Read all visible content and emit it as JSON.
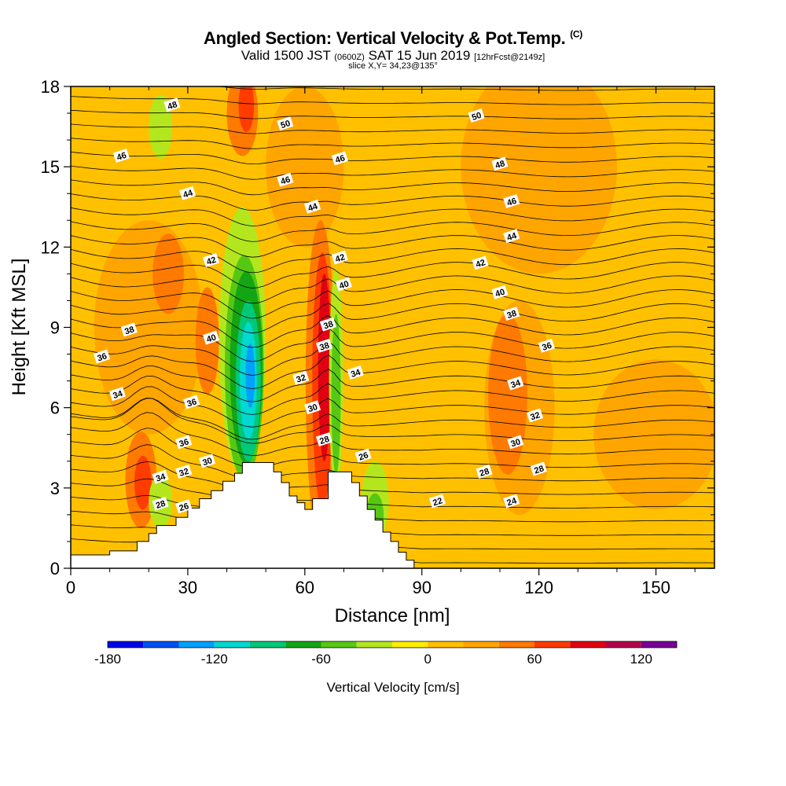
{
  "header": {
    "title": "Angled Section: Vertical Velocity & Pot.Temp.",
    "title_mark": "(C)",
    "valid_prefix": "Valid 1500 JST",
    "valid_utc": "(0600Z)",
    "valid_date": "SAT 15 Jun 2019",
    "forecast": "[12hrFcst@2149z]",
    "slice": "slice X,Y= 34,23@135°"
  },
  "chart_data": {
    "type": "heatmap",
    "title": "Angled Section: Vertical Velocity & Pot.Temp.",
    "xlabel": "Distance [nm]",
    "ylabel": "Height [Kft MSL]",
    "xlim": [
      0,
      165
    ],
    "ylim": [
      0,
      18
    ],
    "x_ticks": [
      "0",
      "30",
      "60",
      "90",
      "120",
      "150"
    ],
    "y_ticks": [
      "0",
      "3",
      "6",
      "9",
      "12",
      "15",
      "18"
    ],
    "colorbar": {
      "label": "Vertical Velocity [cm/s]",
      "tick_labels": [
        "-180",
        "-120",
        "-60",
        "0",
        "60",
        "120"
      ],
      "levels": [
        -180,
        -160,
        -140,
        -120,
        -100,
        -80,
        -60,
        -40,
        -20,
        0,
        20,
        40,
        60,
        80,
        100,
        120,
        140
      ],
      "colors": [
        "#0000e6",
        "#0050f0",
        "#00a0ff",
        "#00d8d0",
        "#00c878",
        "#14a514",
        "#56c814",
        "#b4e61e",
        "#ffee00",
        "#ffc000",
        "#ffa500",
        "#ff7a00",
        "#ff3c00",
        "#e10014",
        "#b4004b",
        "#780096"
      ]
    },
    "terrain": [
      [
        0,
        0.5
      ],
      [
        10,
        0.5
      ],
      [
        10,
        0.65
      ],
      [
        17,
        0.65
      ],
      [
        17,
        1.0
      ],
      [
        20,
        1.0
      ],
      [
        20,
        1.3
      ],
      [
        22,
        1.3
      ],
      [
        22,
        1.6
      ],
      [
        25,
        1.6
      ],
      [
        25,
        1.6
      ],
      [
        27,
        1.6
      ],
      [
        27,
        1.9
      ],
      [
        30,
        1.9
      ],
      [
        30,
        2.25
      ],
      [
        33,
        2.25
      ],
      [
        33,
        2.6
      ],
      [
        36,
        2.6
      ],
      [
        36,
        2.9
      ],
      [
        39,
        2.9
      ],
      [
        39,
        3.25
      ],
      [
        42,
        3.25
      ],
      [
        42,
        3.55
      ],
      [
        44,
        3.55
      ],
      [
        44,
        3.95
      ],
      [
        52,
        3.95
      ],
      [
        52,
        3.6
      ],
      [
        54,
        3.6
      ],
      [
        54,
        3.2
      ],
      [
        56,
        3.2
      ],
      [
        56,
        2.7
      ],
      [
        58,
        2.7
      ],
      [
        58,
        2.45
      ],
      [
        60,
        2.45
      ],
      [
        60,
        2.2
      ],
      [
        62,
        2.2
      ],
      [
        62,
        2.6
      ],
      [
        66,
        2.6
      ],
      [
        66,
        3.6
      ],
      [
        72,
        3.6
      ],
      [
        72,
        3.2
      ],
      [
        74,
        3.2
      ],
      [
        74,
        2.7
      ],
      [
        76,
        2.7
      ],
      [
        76,
        2.2
      ],
      [
        78,
        2.2
      ],
      [
        78,
        1.8
      ],
      [
        80,
        1.8
      ],
      [
        80,
        1.35
      ],
      [
        82,
        1.35
      ],
      [
        82,
        1.0
      ],
      [
        84,
        1.0
      ],
      [
        84,
        0.6
      ],
      [
        86,
        0.6
      ],
      [
        86,
        0.3
      ],
      [
        88,
        0.3
      ],
      [
        88,
        0.0
      ]
    ],
    "updraft_areas": [
      {
        "level": 80,
        "center": [
          65,
          7.5
        ],
        "radius": [
          1.6,
          3.5
        ]
      },
      {
        "level": 60,
        "center": [
          64.5,
          7.0
        ],
        "radius": [
          2.6,
          4.8
        ]
      },
      {
        "level": 40,
        "center": [
          64,
          7.0
        ],
        "radius": [
          3.8,
          6.0
        ]
      },
      {
        "level": 40,
        "center": [
          18,
          3.3
        ],
        "radius": [
          4.0,
          1.8
        ]
      },
      {
        "level": 60,
        "center": [
          18.5,
          3.2
        ],
        "radius": [
          2.2,
          1.0
        ]
      },
      {
        "level": 40,
        "center": [
          35,
          8.5
        ],
        "radius": [
          3.0,
          2.0
        ]
      },
      {
        "level": 40,
        "center": [
          44,
          17.0
        ],
        "radius": [
          4.0,
          1.6
        ]
      },
      {
        "level": 60,
        "center": [
          45,
          17.3
        ],
        "radius": [
          2.0,
          1.0
        ]
      },
      {
        "level": 40,
        "center": [
          25,
          11.0
        ],
        "radius": [
          4.0,
          1.5
        ]
      },
      {
        "level": 20,
        "center": [
          20,
          9.0
        ],
        "radius": [
          14,
          4.0
        ]
      },
      {
        "level": 20,
        "center": [
          115,
          6.0
        ],
        "radius": [
          9,
          4.0
        ]
      },
      {
        "level": 40,
        "center": [
          112,
          6.5
        ],
        "radius": [
          5,
          3.0
        ]
      },
      {
        "level": 20,
        "center": [
          150,
          5.0
        ],
        "radius": [
          16,
          2.8
        ]
      },
      {
        "level": 20,
        "center": [
          120,
          15.0
        ],
        "radius": [
          20,
          4.0
        ]
      },
      {
        "level": 20,
        "center": [
          60,
          15.0
        ],
        "radius": [
          10,
          3.0
        ]
      }
    ],
    "downdraft_areas": [
      {
        "level": -20,
        "center": [
          44,
          8.5
        ],
        "radius": [
          6.0,
          5.0
        ]
      },
      {
        "level": -40,
        "center": [
          44.5,
          7.5
        ],
        "radius": [
          5.0,
          4.2
        ]
      },
      {
        "level": -60,
        "center": [
          45,
          7.5
        ],
        "radius": [
          4.2,
          3.6
        ]
      },
      {
        "level": -80,
        "center": [
          45.5,
          7.0
        ],
        "radius": [
          3.2,
          3.0
        ]
      },
      {
        "level": -100,
        "center": [
          45.5,
          7.0
        ],
        "radius": [
          2.2,
          2.2
        ]
      },
      {
        "level": -120,
        "center": [
          46,
          7.2
        ],
        "radius": [
          1.2,
          1.2
        ]
      },
      {
        "level": -20,
        "center": [
          68,
          7.0
        ],
        "radius": [
          1.8,
          4.2
        ]
      },
      {
        "level": -40,
        "center": [
          68,
          6.5
        ],
        "radius": [
          1.2,
          3.0
        ]
      },
      {
        "level": -20,
        "center": [
          78,
          2.5
        ],
        "radius": [
          3.5,
          1.5
        ]
      },
      {
        "level": -40,
        "center": [
          78,
          2.0
        ],
        "radius": [
          2.2,
          0.8
        ]
      },
      {
        "level": -20,
        "center": [
          23,
          2.5
        ],
        "radius": [
          3.0,
          1.0
        ]
      },
      {
        "level": -20,
        "center": [
          23,
          16.5
        ],
        "radius": [
          3.0,
          1.2
        ]
      }
    ],
    "contour_labels": [
      {
        "text": "48",
        "x": 26,
        "y": 17.3
      },
      {
        "text": "50",
        "x": 55,
        "y": 16.6
      },
      {
        "text": "50",
        "x": 104,
        "y": 16.9
      },
      {
        "text": "46",
        "x": 13,
        "y": 15.4
      },
      {
        "text": "46",
        "x": 69,
        "y": 15.3
      },
      {
        "text": "48",
        "x": 110,
        "y": 15.1
      },
      {
        "text": "46",
        "x": 55,
        "y": 14.5
      },
      {
        "text": "44",
        "x": 30,
        "y": 14.0
      },
      {
        "text": "44",
        "x": 62,
        "y": 13.5
      },
      {
        "text": "46",
        "x": 113,
        "y": 13.7
      },
      {
        "text": "44",
        "x": 113,
        "y": 12.4
      },
      {
        "text": "42",
        "x": 36,
        "y": 11.5
      },
      {
        "text": "42",
        "x": 69,
        "y": 11.6
      },
      {
        "text": "42",
        "x": 105,
        "y": 11.4
      },
      {
        "text": "40",
        "x": 70,
        "y": 10.6
      },
      {
        "text": "40",
        "x": 110,
        "y": 10.3
      },
      {
        "text": "38",
        "x": 113,
        "y": 9.5
      },
      {
        "text": "38",
        "x": 15,
        "y": 8.9
      },
      {
        "text": "40",
        "x": 36,
        "y": 8.6
      },
      {
        "text": "38",
        "x": 66,
        "y": 9.1
      },
      {
        "text": "38",
        "x": 65,
        "y": 8.3
      },
      {
        "text": "36",
        "x": 122,
        "y": 8.3
      },
      {
        "text": "36",
        "x": 8,
        "y": 7.9
      },
      {
        "text": "34",
        "x": 73,
        "y": 7.3
      },
      {
        "text": "32",
        "x": 59,
        "y": 7.1
      },
      {
        "text": "34",
        "x": 114,
        "y": 6.9
      },
      {
        "text": "34",
        "x": 12,
        "y": 6.5
      },
      {
        "text": "36",
        "x": 31,
        "y": 6.2
      },
      {
        "text": "30",
        "x": 62,
        "y": 6.0
      },
      {
        "text": "32",
        "x": 119,
        "y": 5.7
      },
      {
        "text": "30",
        "x": 114,
        "y": 4.7
      },
      {
        "text": "36",
        "x": 29,
        "y": 4.7
      },
      {
        "text": "28",
        "x": 65,
        "y": 4.8
      },
      {
        "text": "30",
        "x": 35,
        "y": 4.0
      },
      {
        "text": "26",
        "x": 75,
        "y": 4.2
      },
      {
        "text": "32",
        "x": 29,
        "y": 3.6
      },
      {
        "text": "28",
        "x": 106,
        "y": 3.6
      },
      {
        "text": "28",
        "x": 120,
        "y": 3.7
      },
      {
        "text": "34",
        "x": 23,
        "y": 3.4
      },
      {
        "text": "22",
        "x": 94,
        "y": 2.5
      },
      {
        "text": "24",
        "x": 113,
        "y": 2.5
      },
      {
        "text": "28",
        "x": 23,
        "y": 2.4
      },
      {
        "text": "26",
        "x": 29,
        "y": 2.3
      }
    ]
  }
}
